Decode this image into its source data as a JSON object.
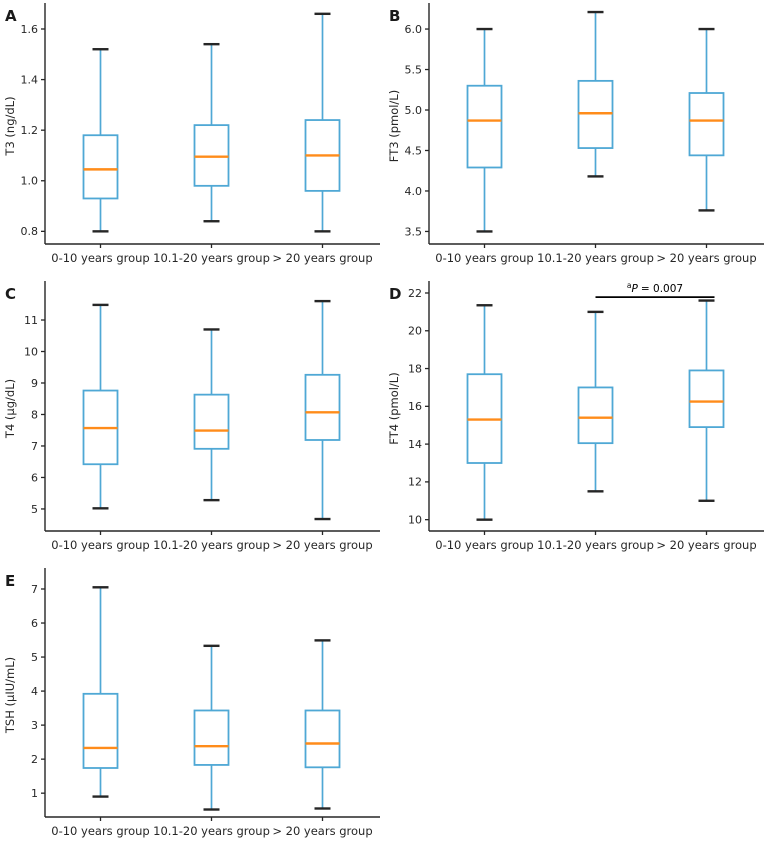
{
  "figure": {
    "colors": {
      "box": "#4FA8D5",
      "median": "#FF8C1A",
      "cap": "#262626",
      "axis": "#262626",
      "text": "#262626",
      "annotation": "#000000",
      "background": "#ffffff"
    }
  },
  "chart_data": [
    {
      "type": "boxplot",
      "panel_label": "A",
      "ylabel": "T3 (ng/dL)",
      "ylim": [
        0.75,
        1.683
      ],
      "yticks": [
        0.8,
        1.0,
        1.2,
        1.4,
        1.6
      ],
      "ytick_labels": [
        "0.8",
        "1.0",
        "1.2",
        "1.4",
        "1.6"
      ],
      "categories": [
        "0-10 years group",
        "10.1-20 years group",
        "> 20 years group"
      ],
      "boxes": [
        {
          "whislo": 0.8,
          "q1": 0.93,
          "med": 1.045,
          "q3": 1.18,
          "whishi": 1.52
        },
        {
          "whislo": 0.84,
          "q1": 0.98,
          "med": 1.095,
          "q3": 1.22,
          "whishi": 1.54
        },
        {
          "whislo": 0.8,
          "q1": 0.96,
          "med": 1.1,
          "q3": 1.24,
          "whishi": 1.66
        }
      ],
      "annotation": null
    },
    {
      "type": "boxplot",
      "panel_label": "B",
      "ylabel": "FT3 (pmol/L)",
      "ylim": [
        3.345,
        6.26
      ],
      "yticks": [
        3.5,
        4.0,
        4.5,
        5.0,
        5.5,
        6.0
      ],
      "ytick_labels": [
        "3.5",
        "4.0",
        "4.5",
        "5.0",
        "5.5",
        "6.0"
      ],
      "categories": [
        "0-10 years group",
        "10.1-20 years group",
        "> 20 years group"
      ],
      "boxes": [
        {
          "whislo": 3.5,
          "q1": 4.29,
          "med": 4.87,
          "q3": 5.3,
          "whishi": 6.0
        },
        {
          "whislo": 4.18,
          "q1": 4.53,
          "med": 4.96,
          "q3": 5.36,
          "whishi": 6.21
        },
        {
          "whislo": 3.76,
          "q1": 4.44,
          "med": 4.87,
          "q3": 5.21,
          "whishi": 6.0
        }
      ],
      "annotation": null
    },
    {
      "type": "boxplot",
      "panel_label": "C",
      "ylabel": "T4 (μg/dL)",
      "ylim": [
        4.3,
        12.08
      ],
      "yticks": [
        5,
        6,
        7,
        8,
        9,
        10,
        11
      ],
      "ytick_labels": [
        "5",
        "6",
        "7",
        "8",
        "9",
        "10",
        "11"
      ],
      "categories": [
        "0-10 years group",
        "10.1-20 years group",
        "> 20 years group"
      ],
      "boxes": [
        {
          "whislo": 5.02,
          "q1": 6.42,
          "med": 7.57,
          "q3": 8.76,
          "whishi": 11.48
        },
        {
          "whislo": 5.28,
          "q1": 6.91,
          "med": 7.49,
          "q3": 8.63,
          "whishi": 10.7
        },
        {
          "whislo": 4.68,
          "q1": 7.19,
          "med": 8.07,
          "q3": 9.26,
          "whishi": 11.6
        }
      ],
      "annotation": null
    },
    {
      "type": "boxplot",
      "panel_label": "D",
      "ylabel": "FT4 (pmol/L)",
      "ylim": [
        9.4,
        22.37
      ],
      "yticks": [
        10,
        12,
        14,
        16,
        18,
        20,
        22
      ],
      "ytick_labels": [
        "10",
        "12",
        "14",
        "16",
        "18",
        "20",
        "22"
      ],
      "categories": [
        "0-10 years group",
        "10.1-20 years group",
        "> 20 years group"
      ],
      "boxes": [
        {
          "whislo": 10.0,
          "q1": 13.0,
          "med": 15.3,
          "q3": 17.7,
          "whishi": 21.35
        },
        {
          "whislo": 11.5,
          "q1": 14.05,
          "med": 15.4,
          "q3": 17.0,
          "whishi": 21.0
        },
        {
          "whislo": 11.0,
          "q1": 14.9,
          "med": 16.25,
          "q3": 17.9,
          "whishi": 21.6
        }
      ],
      "annotation": {
        "sup_text": "a",
        "p_text": "P",
        "rest_text": "= 0.007",
        "from_group": 1,
        "to_group": 2,
        "y_value": 21.78
      }
    },
    {
      "type": "boxplot",
      "panel_label": "E",
      "ylabel": "TSH (μIU/mL)",
      "ylim": [
        0.3,
        7.47
      ],
      "yticks": [
        1,
        2,
        3,
        4,
        5,
        6,
        7
      ],
      "ytick_labels": [
        "1",
        "2",
        "3",
        "4",
        "5",
        "6",
        "7"
      ],
      "categories": [
        "0-10 years group",
        "10.1-20 years group",
        "> 20 years group"
      ],
      "boxes": [
        {
          "whislo": 0.9,
          "q1": 1.74,
          "med": 2.33,
          "q3": 3.92,
          "whishi": 7.05
        },
        {
          "whislo": 0.52,
          "q1": 1.83,
          "med": 2.38,
          "q3": 3.43,
          "whishi": 5.33
        },
        {
          "whislo": 0.55,
          "q1": 1.76,
          "med": 2.46,
          "q3": 3.43,
          "whishi": 5.49
        }
      ],
      "annotation": null
    }
  ]
}
